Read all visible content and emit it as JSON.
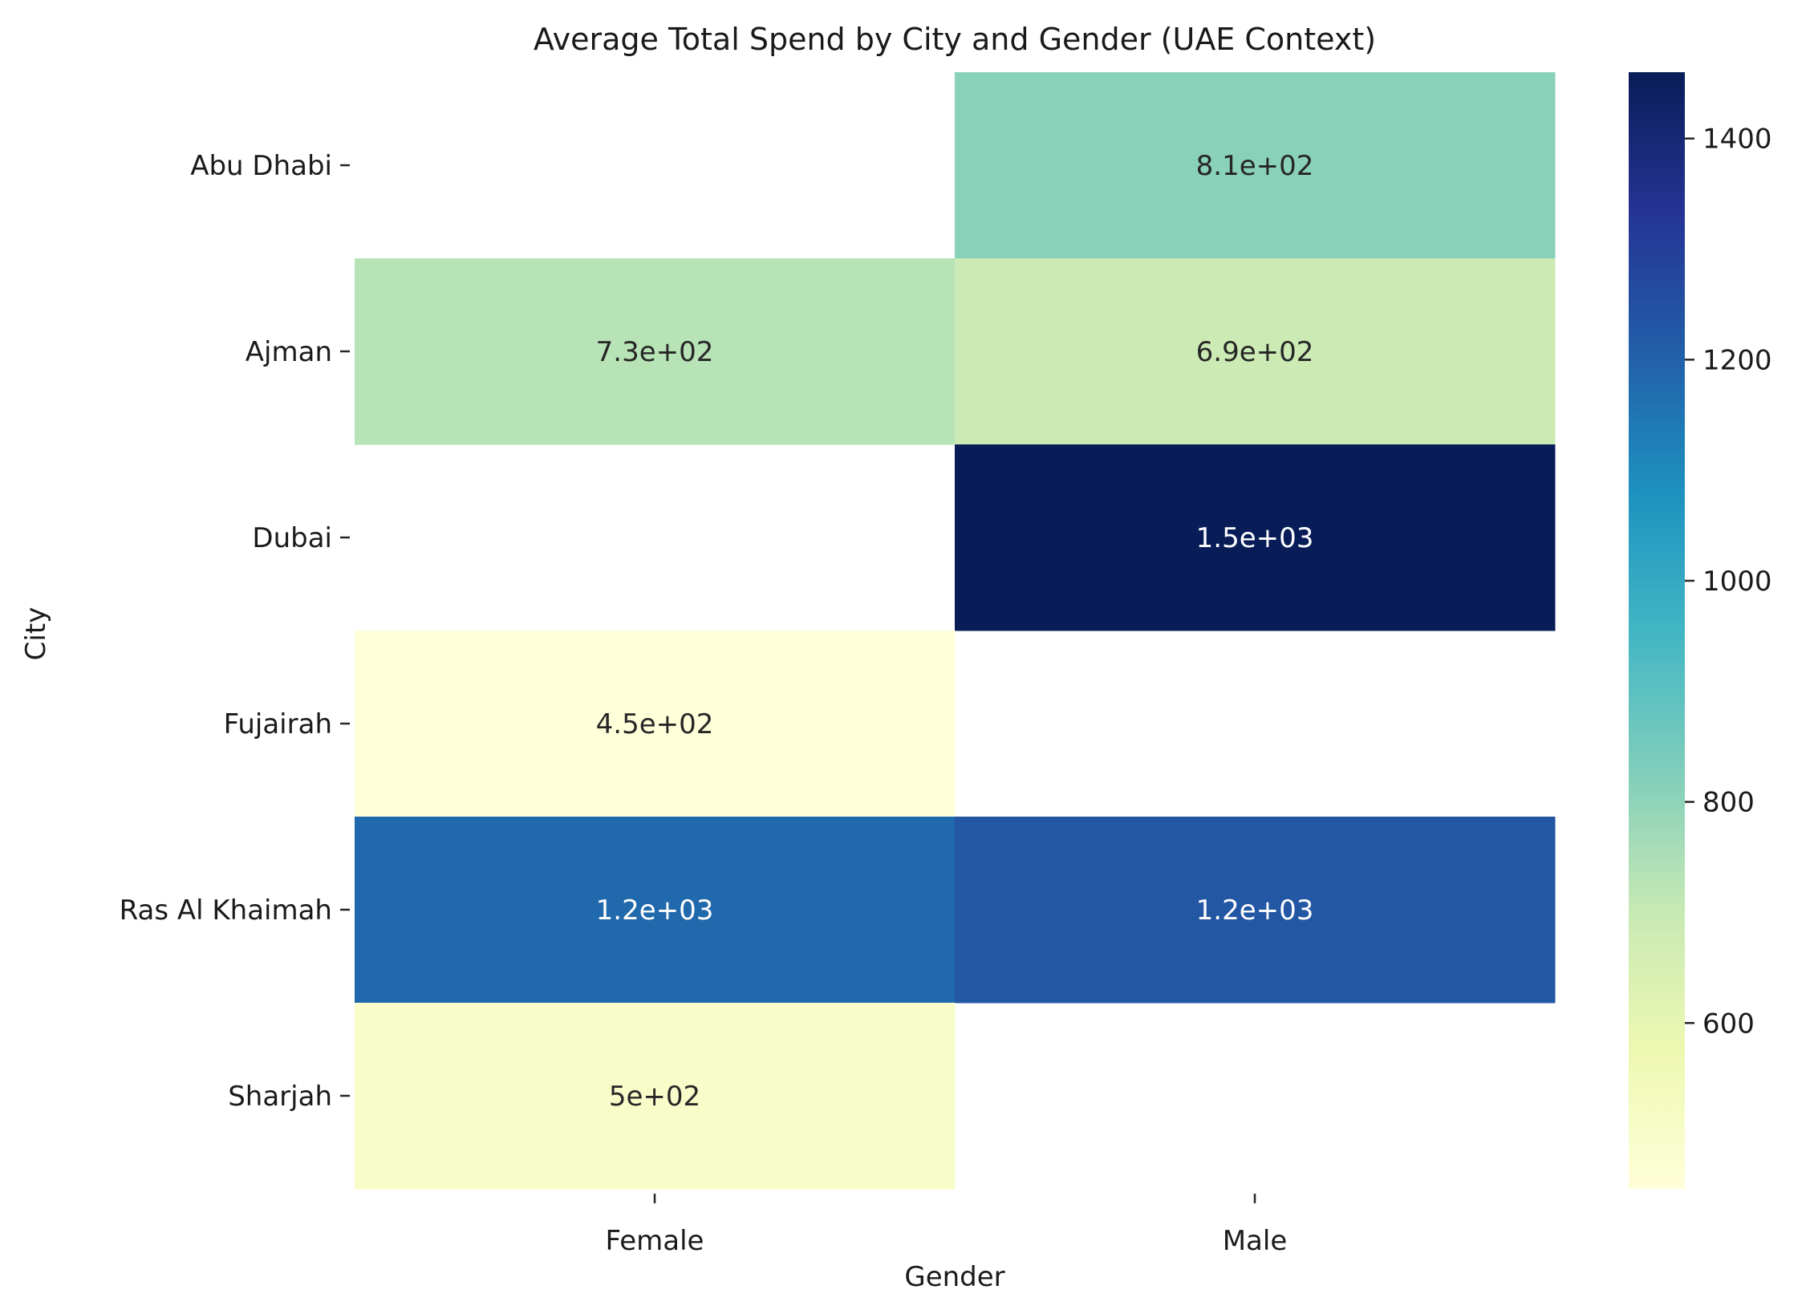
{
  "chart_data": {
    "type": "heatmap",
    "title": "Average Total Spend by City and Gender (UAE Context)",
    "xlabel": "Gender",
    "ylabel": "City",
    "x_categories": [
      "Female",
      "Male"
    ],
    "y_categories": [
      "Abu Dhabi",
      "Ajman",
      "Dubai",
      "Fujairah",
      "Ras Al Khaimah",
      "Sharjah"
    ],
    "values": [
      [
        null,
        810
      ],
      [
        730,
        690
      ],
      [
        null,
        1460
      ],
      [
        450,
        null
      ],
      [
        1180,
        1230
      ],
      [
        500,
        null
      ]
    ],
    "annotations": [
      [
        "",
        "8.1e+02"
      ],
      [
        "7.3e+02",
        "6.9e+02"
      ],
      [
        "",
        "1.5e+03"
      ],
      [
        "4.5e+02",
        ""
      ],
      [
        "1.2e+03",
        "1.2e+03"
      ],
      [
        "5e+02",
        ""
      ]
    ],
    "colormap": "YlGnBu",
    "colorbar": {
      "min": 450,
      "max": 1460,
      "ticks": [
        600,
        800,
        1000,
        1200,
        1400
      ],
      "tick_labels": [
        "600",
        "800",
        "1000",
        "1200",
        "1400"
      ]
    },
    "grid": false,
    "legend": "colorbar-right"
  }
}
